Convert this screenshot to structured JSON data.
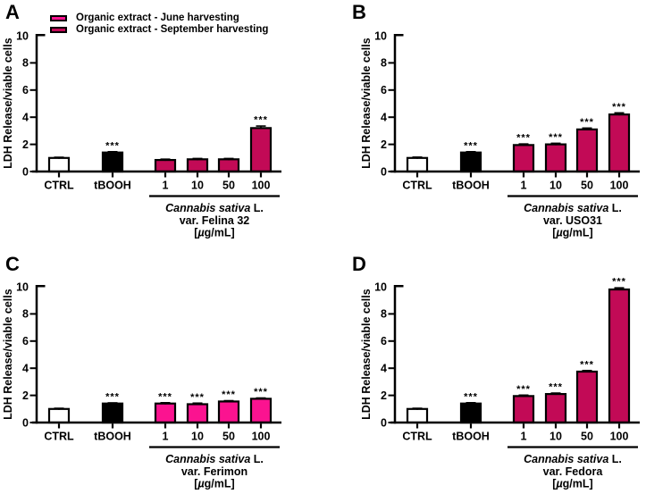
{
  "figure": {
    "background": "#FFFFFF"
  },
  "colors": {
    "june": "#FB1390",
    "september": "#C20A56",
    "black": "#000000",
    "white": "#FFFFFF",
    "axis": "#000000"
  },
  "legend": {
    "items": [
      {
        "key": "june",
        "label": "Organic extract - June harvesting",
        "color": "#FB1390"
      },
      {
        "key": "september",
        "label": "Organic extract - September harvesting",
        "color": "#C20A56"
      }
    ]
  },
  "chart_data": [
    {
      "panel_label": "A",
      "type": "bar",
      "ylabel": "LDH Release/viable cells",
      "xlabel": "",
      "ylim": [
        0,
        10
      ],
      "yticks": [
        0,
        2,
        4,
        6,
        8,
        10
      ],
      "grid": false,
      "categories": [
        "CTRL",
        "tBOOH",
        "1",
        "10",
        "50",
        "100"
      ],
      "values": [
        1.0,
        1.4,
        0.85,
        0.9,
        0.9,
        3.2
      ],
      "errors": [
        0.05,
        0.06,
        0.06,
        0.06,
        0.06,
        0.15
      ],
      "significance": [
        null,
        "***",
        null,
        null,
        null,
        "***"
      ],
      "bar_colors": [
        "white",
        "black",
        "september",
        "september",
        "september",
        "september"
      ],
      "group": {
        "applies_to": [
          "1",
          "10",
          "50",
          "100"
        ],
        "species_italic": "Cannabis sativa",
        "species_roman": " L.",
        "variety": "var. Felina 32",
        "unit": "[µg/mL]"
      }
    },
    {
      "panel_label": "B",
      "type": "bar",
      "ylabel": "LDH Release/viable cells",
      "xlabel": "",
      "ylim": [
        0,
        10
      ],
      "yticks": [
        0,
        2,
        4,
        6,
        8,
        10
      ],
      "grid": false,
      "categories": [
        "CTRL",
        "tBOOH",
        "1",
        "10",
        "50",
        "100"
      ],
      "values": [
        1.0,
        1.4,
        1.95,
        2.0,
        3.1,
        4.2
      ],
      "errors": [
        0.06,
        0.06,
        0.08,
        0.08,
        0.1,
        0.12
      ],
      "significance": [
        null,
        "***",
        "***",
        "***",
        "***",
        "***"
      ],
      "bar_colors": [
        "white",
        "black",
        "september",
        "september",
        "september",
        "september"
      ],
      "group": {
        "applies_to": [
          "1",
          "10",
          "50",
          "100"
        ],
        "species_italic": "Cannabis sativa",
        "species_roman": " L.",
        "variety": "var. USO31",
        "unit": "[µg/mL]"
      }
    },
    {
      "panel_label": "C",
      "type": "bar",
      "ylabel": "LDH Release/viable cells",
      "xlabel": "",
      "ylim": [
        0,
        10
      ],
      "yticks": [
        0,
        2,
        4,
        6,
        8,
        10
      ],
      "grid": false,
      "categories": [
        "CTRL",
        "tBOOH",
        "1",
        "10",
        "50",
        "100"
      ],
      "values": [
        1.0,
        1.4,
        1.4,
        1.35,
        1.55,
        1.75
      ],
      "errors": [
        0.05,
        0.05,
        0.06,
        0.08,
        0.06,
        0.06
      ],
      "significance": [
        null,
        "***",
        "***",
        "***",
        "***",
        "***"
      ],
      "bar_colors": [
        "white",
        "black",
        "june",
        "june",
        "june",
        "june"
      ],
      "group": {
        "applies_to": [
          "1",
          "10",
          "50",
          "100"
        ],
        "species_italic": "Cannabis sativa",
        "species_roman": " L.",
        "variety": "var. Ferimon",
        "unit": "[µg/mL]"
      }
    },
    {
      "panel_label": "D",
      "type": "bar",
      "ylabel": "LDH Release/viable cells",
      "xlabel": "",
      "ylim": [
        0,
        10
      ],
      "yticks": [
        0,
        2,
        4,
        6,
        8,
        10
      ],
      "grid": false,
      "categories": [
        "CTRL",
        "tBOOH",
        "1",
        "10",
        "50",
        "100"
      ],
      "values": [
        1.0,
        1.4,
        1.95,
        2.1,
        3.75,
        9.8
      ],
      "errors": [
        0.05,
        0.06,
        0.07,
        0.07,
        0.08,
        0.12
      ],
      "significance": [
        null,
        "***",
        "***",
        "***",
        "***",
        "***"
      ],
      "bar_colors": [
        "white",
        "black",
        "september",
        "september",
        "september",
        "september"
      ],
      "group": {
        "applies_to": [
          "1",
          "10",
          "50",
          "100"
        ],
        "species_italic": "Cannabis sativa",
        "species_roman": " L.",
        "variety": "var. Fedora",
        "unit": "[µg/mL]"
      }
    }
  ]
}
